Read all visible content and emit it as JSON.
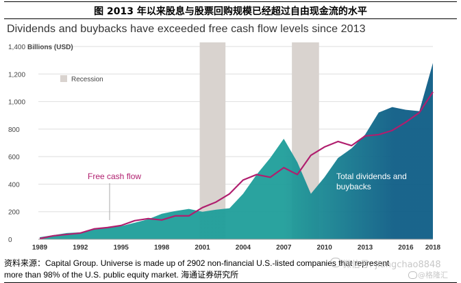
{
  "header": {
    "cn_title": "图  2013 年以来股息与股票回购规模已经超过自由现金流的水平"
  },
  "source": {
    "line1": "资料来源：Capital Group. Universe is made up of 2902 non-financial U.S.-listed companies that represent",
    "line2": "more than 98% of the U.S. public equity market.  海通证券研究所"
  },
  "watermark": {
    "text1": "微信号: jiangchao8848",
    "text2": "@格隆汇"
  },
  "chart_data": {
    "type": "area",
    "title": "Dividends and buybacks have exceeded free cash flow levels since 2013",
    "ylabel": "Billions (USD)",
    "xlabel": "",
    "ylim": [
      0,
      1400
    ],
    "xlim": [
      1989,
      2018
    ],
    "yticks": [
      0,
      200,
      400,
      600,
      800,
      1000,
      1200,
      1400
    ],
    "ytick_labels": [
      "0",
      "200",
      "400",
      "600",
      "800",
      "1,000",
      "1,200",
      "1,400"
    ],
    "xticks": [
      1989,
      1992,
      1995,
      1998,
      2001,
      2004,
      2007,
      2010,
      2013,
      2016,
      2018
    ],
    "grid": true,
    "legend": [
      {
        "label": "Recession",
        "color": "#d9d3cf"
      }
    ],
    "recessions": [
      [
        2000.8,
        2002.7
      ],
      [
        2007.6,
        2009.6
      ]
    ],
    "series": [
      {
        "name": "Total dividends and buybacks",
        "kind": "area",
        "color": "#1f9e9a",
        "color_dark": "#0e5d86",
        "label_lines": [
          "Total dividends and",
          "buybacks"
        ],
        "x": [
          1989,
          1990,
          1991,
          1992,
          1993,
          1994,
          1995,
          1996,
          1997,
          1998,
          1999,
          2000,
          2001,
          2002,
          2003,
          2004,
          2005,
          2006,
          2007,
          2008,
          2009,
          2010,
          2011,
          2012,
          2013,
          2014,
          2015,
          2016,
          2017,
          2018
        ],
        "values": [
          15,
          30,
          45,
          50,
          75,
          85,
          95,
          120,
          145,
          185,
          205,
          220,
          200,
          215,
          225,
          330,
          470,
          590,
          730,
          560,
          330,
          450,
          590,
          660,
          760,
          920,
          960,
          940,
          930,
          1280
        ]
      },
      {
        "name": "Free cash flow",
        "kind": "line",
        "color": "#b01e6e",
        "x": [
          1989,
          1990,
          1991,
          1992,
          1993,
          1994,
          1995,
          1996,
          1997,
          1998,
          1999,
          2000,
          2001,
          2002,
          2003,
          2004,
          2005,
          2006,
          2007,
          2008,
          2009,
          2010,
          2011,
          2012,
          2013,
          2014,
          2015,
          2016,
          2017,
          2018
        ],
        "values": [
          5,
          25,
          35,
          45,
          75,
          85,
          100,
          135,
          150,
          140,
          170,
          170,
          230,
          270,
          330,
          430,
          470,
          450,
          520,
          470,
          610,
          670,
          710,
          680,
          750,
          760,
          790,
          850,
          920,
          1070
        ]
      }
    ]
  }
}
